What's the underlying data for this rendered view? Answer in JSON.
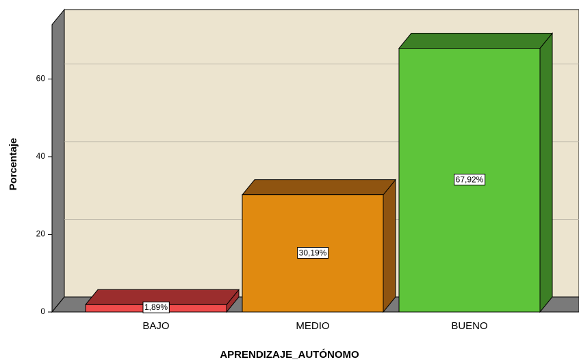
{
  "chart_data": {
    "type": "bar3d",
    "x_label": "APRENDIZAJE_AUTÓNOMO",
    "y_label": "Porcentaje",
    "categories": [
      "BAJO",
      "MEDIO",
      "BUENO"
    ],
    "values": [
      1.89,
      30.19,
      67.92
    ],
    "value_labels": [
      "1,89%",
      "30,19%",
      "67,92%"
    ],
    "colors": [
      "#ef4b4b",
      "#e08a10",
      "#5ec43a"
    ],
    "top_colors": [
      "#9b2d2d",
      "#8f5410",
      "#3c7f25"
    ],
    "ylim": [
      0,
      74
    ],
    "yticks": [
      0,
      20,
      40,
      60
    ],
    "grid": true
  }
}
